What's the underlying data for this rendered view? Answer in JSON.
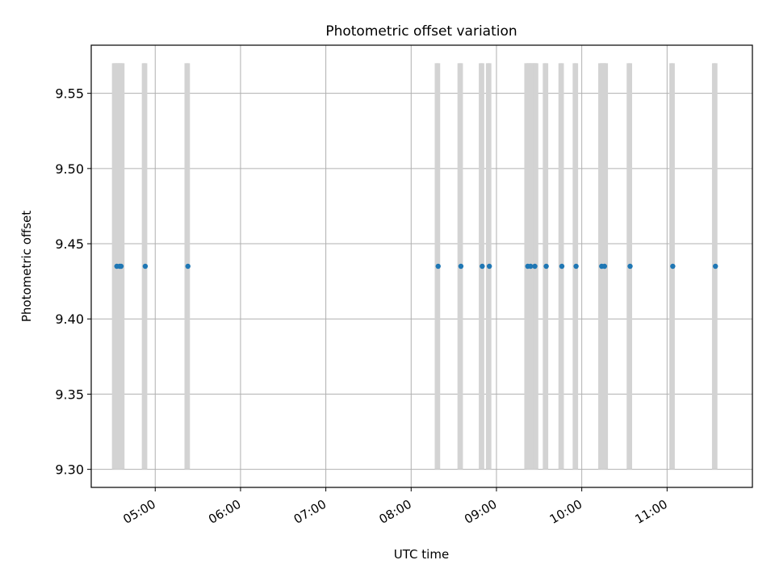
{
  "chart_data": {
    "type": "scatter",
    "title": "Photometric offset variation",
    "xlabel": "UTC time",
    "ylabel": "Photometric offset",
    "x_axis_kind": "time",
    "x_range": [
      "04:15",
      "12:00"
    ],
    "ylim": [
      9.288,
      9.582
    ],
    "x_ticks": [
      "05:00",
      "06:00",
      "07:00",
      "08:00",
      "09:00",
      "10:00",
      "11:00"
    ],
    "y_ticks": [
      9.3,
      9.35,
      9.4,
      9.45,
      9.5,
      9.55
    ],
    "y_tick_labels": [
      "9.30",
      "9.35",
      "9.40",
      "9.45",
      "9.50",
      "9.55"
    ],
    "grid": true,
    "series": [
      {
        "color": "#1f77b4",
        "x": [
          "04:33",
          "04:35",
          "04:36",
          "04:53",
          "05:23",
          "08:19",
          "08:35",
          "08:50",
          "08:55",
          "09:22",
          "09:24",
          "09:27",
          "09:35",
          "09:46",
          "09:56",
          "10:14",
          "10:16",
          "10:34",
          "11:04",
          "11:34"
        ],
        "y": [
          9.435,
          9.435,
          9.435,
          9.435,
          9.435,
          9.435,
          9.435,
          9.435,
          9.435,
          9.435,
          9.435,
          9.435,
          9.435,
          9.435,
          9.435,
          9.435,
          9.435,
          9.435,
          9.435,
          9.435
        ]
      }
    ],
    "intervals": {
      "color": "#d3d3d3",
      "y_range": [
        9.3,
        9.57
      ],
      "x": [
        "04:31",
        "04:32",
        "04:33",
        "04:34",
        "04:35",
        "04:36",
        "04:37",
        "04:52",
        "04:53",
        "05:22",
        "05:23",
        "08:18",
        "08:19",
        "08:34",
        "08:35",
        "08:49",
        "08:50",
        "08:54",
        "08:55",
        "09:21",
        "09:22",
        "09:23",
        "09:24",
        "09:25",
        "09:26",
        "09:27",
        "09:28",
        "09:34",
        "09:35",
        "09:45",
        "09:46",
        "09:55",
        "09:56",
        "10:13",
        "10:14",
        "10:15",
        "10:16",
        "10:17",
        "10:33",
        "10:34",
        "11:03",
        "11:04",
        "11:33",
        "11:34"
      ]
    }
  }
}
